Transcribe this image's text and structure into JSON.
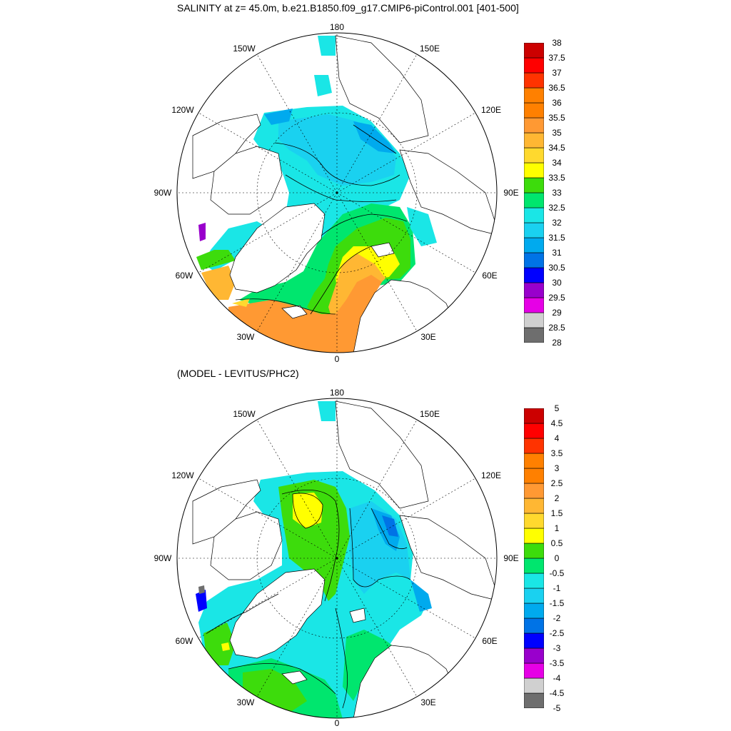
{
  "title": "SALINITY at z=  45.0m, b.e21.B1850.f09_g17.CMIP6-piControl.001 [401-500]",
  "subtitle": "(MODEL - LEVITUS/PHC2)",
  "longitude_labels": {
    "lon_180": "180",
    "lon_150w": "150W",
    "lon_150e": "150E",
    "lon_120w": "120W",
    "lon_120e": "120E",
    "lon_90w": "90W",
    "lon_90e": "90E",
    "lon_60w": "60W",
    "lon_60e": "60E",
    "lon_30w": "30W",
    "lon_30e": "30E",
    "lon_0": "0"
  },
  "colors": {
    "c0": "#6e6e6e",
    "c1": "#d0d0d0",
    "c2": "#e600e6",
    "c3": "#9900cc",
    "c4": "#0000ff",
    "c5": "#0073e6",
    "c6": "#00aaee",
    "c7": "#1ad1f0",
    "c8": "#1ae6e6",
    "c9": "#00e66e",
    "c10": "#3ddc0c",
    "c11": "#ffff00",
    "c12": "#ffd92e",
    "c13": "#ffb733",
    "c14": "#ff9933",
    "c15": "#ff8000",
    "c16": "#ff3300",
    "c17": "#ff0000",
    "c18": "#cc0000",
    "land": "#ffffff"
  },
  "colorbar_top": {
    "labels": [
      "28",
      "28.5",
      "29",
      "29.5",
      "30",
      "30.5",
      "31",
      "31.5",
      "32",
      "32.5",
      "33",
      "33.5",
      "34",
      "34.5",
      "35",
      "35.5",
      "36",
      "36.5",
      "37",
      "37.5",
      "38"
    ]
  },
  "colorbar_bottom": {
    "labels": [
      "-5",
      "-4.5",
      "-4",
      "-3.5",
      "-3",
      "-2.5",
      "-2",
      "-1.5",
      "-1",
      "-0.5",
      "0",
      "0.5",
      "1",
      "1.5",
      "2",
      "2.5",
      "3",
      "3.5",
      "4",
      "4.5",
      "5"
    ]
  }
}
